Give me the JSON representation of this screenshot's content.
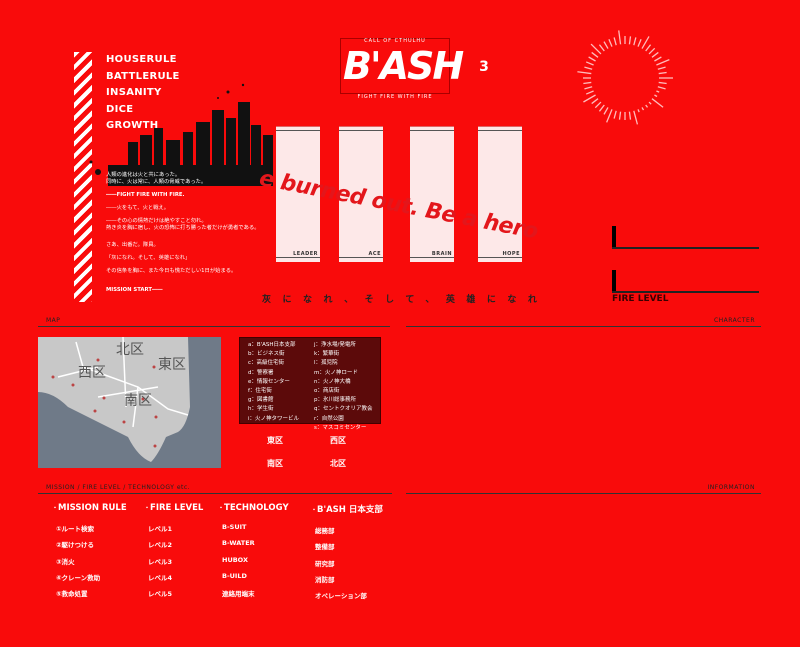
{
  "menu": [
    "HOUSERULE",
    "BATTLERULE",
    "INSANITY",
    "DICE",
    "GROWTH"
  ],
  "story": {
    "p1": "人類の進化は火と共にあった。",
    "p1b": "同時に、火は常に、人類の脅威であった。",
    "p2": "――FIGHT FIRE WITH FIRE.",
    "p3": "――火をもて、火と戦え。",
    "p4": "――その心の情熱だけは絶やすこと勿れ。",
    "p4b": "熱き炎を胸に宿し、火の恐怖に打ち勝った者だけが勇者である。",
    "p5": "さあ、出番だ。隊員。",
    "p6": "「灰になれ。そして、英雄になれ」",
    "p7": "その信条を胸に、また今日も慌ただしい1日が始まる。",
    "p8": "MISSION START――"
  },
  "logo": {
    "top": "CALL OF CTHULHU",
    "title": "B'ASH",
    "bottom": "FIGHT FIRE WITH FIRE"
  },
  "cards": [
    "LEADER",
    "ACE",
    "BRAIN",
    "HOPE"
  ],
  "slogan": "e burned out. Be a hero",
  "tagline": "灰になれ、そして、英雄になれ",
  "fire_level_label": "FIRE LEVEL",
  "sections": {
    "map": "MAP",
    "character": "CHARACTER",
    "mission": "MISSION / FIRE LEVEL / TECHNOLOGY etc.",
    "information": "INFORMATION"
  },
  "map_labels": [
    "北区",
    "東区",
    "西区",
    "南区"
  ],
  "legend": {
    "left": [
      "a：B'ASH日本支部",
      "b：ビジネス街",
      "c：高級住宅街",
      "d：警察署",
      "e：情報センター",
      "f：住宅街",
      "g：図書館",
      "h：学生街",
      "i：火ノ神タワービル"
    ],
    "right": [
      "j：浄水場/発電所",
      "k：繁華街",
      "l：孤児院",
      "m：火ノ神ロード",
      "n：火ノ神大橋",
      "o：商店街",
      "p：氷川総事務所",
      "q：セントクオリア教会",
      "r：自然公園",
      "s：マスコミセンター"
    ]
  },
  "districts": [
    "東区",
    "西区",
    "南区",
    "北区"
  ],
  "columns": [
    {
      "title": "MISSION RULE",
      "items": [
        "①ルート検索",
        "②駆けつける",
        "③消火",
        "④クレーン救助",
        "⑤救命処置"
      ]
    },
    {
      "title": "FIRE LEVEL",
      "items": [
        "レベル1",
        "レベル2",
        "レベル3",
        "レベル4",
        "レベル5"
      ]
    },
    {
      "title": "TECHNOLOGY",
      "items": [
        "B-SUIT",
        "B-WATER",
        "HUBOX",
        "B-UILD",
        "連絡用端末"
      ]
    },
    {
      "title": "B'ASH 日本支部",
      "items": [
        "総務部",
        "整備部",
        "研究部",
        "消防部",
        "オペレーション部"
      ]
    }
  ],
  "colors": {
    "background": "#f90b0b",
    "card": "#fde8e8",
    "legend_bg": "#5c0a0a"
  }
}
